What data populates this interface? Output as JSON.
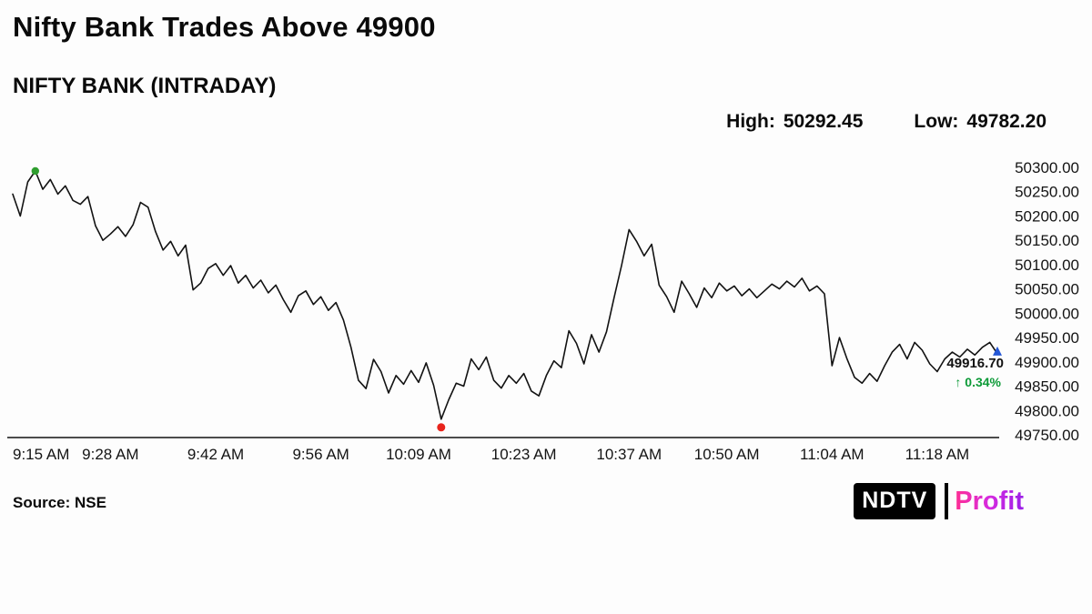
{
  "header": {
    "title": "Nifty Bank Trades Above 49900",
    "subtitle": "NIFTY BANK (INTRADAY)"
  },
  "stats": {
    "high_label": "High:",
    "high_value": "50292.45",
    "low_label": "Low:",
    "low_value": "49782.20"
  },
  "last_quote": {
    "price": "49916.70",
    "change": "↑ 0.34%",
    "change_color": "#0c9a37"
  },
  "footer": {
    "source": "Source: NSE",
    "logo": {
      "ndtv": "NDTV",
      "profit": "Profit",
      "profit_colors": [
        "#ff2f92",
        "#d62ae0",
        "#9b1fe8"
      ]
    }
  },
  "chart_data": {
    "type": "line",
    "title": "NIFTY BANK (INTRADAY)",
    "xlabel": "",
    "ylabel": "",
    "grid": false,
    "legend": false,
    "ylim": [
      49750,
      50300
    ],
    "y_ticks": [
      50300,
      50250,
      50200,
      50150,
      50100,
      50050,
      50000,
      49950,
      49900,
      49850,
      49800,
      49750
    ],
    "y_tick_format_decimals": 2,
    "x_ticks": [
      {
        "label": "9:15 AM",
        "minute": 0
      },
      {
        "label": "9:28 AM",
        "minute": 13
      },
      {
        "label": "9:42 AM",
        "minute": 27
      },
      {
        "label": "9:56 AM",
        "minute": 41
      },
      {
        "label": "10:09 AM",
        "minute": 54
      },
      {
        "label": "10:23 AM",
        "minute": 68
      },
      {
        "label": "10:37 AM",
        "minute": 82
      },
      {
        "label": "10:50 AM",
        "minute": 95
      },
      {
        "label": "11:04 AM",
        "minute": 109
      },
      {
        "label": "11:18 AM",
        "minute": 123
      }
    ],
    "interval_minutes": 1,
    "start_time": "9:15 AM",
    "high": 50292.45,
    "low": 49782.2,
    "last": 49916.7,
    "change_pct": 0.34,
    "line_color": "#121212",
    "high_dot_color": "#2f9e2f",
    "low_dot_color": "#e8241c",
    "end_marker_color": "#2457d6",
    "values": [
      50245,
      50200,
      50270,
      50292.45,
      50255,
      50275,
      50245,
      50262,
      50232,
      50224,
      50240,
      50180,
      50150,
      50163,
      50178,
      50158,
      50182,
      50228,
      50218,
      50168,
      50130,
      50148,
      50118,
      50140,
      50048,
      50062,
      50092,
      50102,
      50078,
      50098,
      50062,
      50078,
      50052,
      50068,
      50042,
      50058,
      50028,
      50002,
      50036,
      50046,
      50018,
      50034,
      50006,
      50022,
      49986,
      49930,
      49862,
      49845,
      49905,
      49880,
      49836,
      49872,
      49854,
      49882,
      49858,
      49898,
      49852,
      49782.2,
      49822,
      49856,
      49850,
      49906,
      49884,
      49910,
      49862,
      49846,
      49872,
      49856,
      49876,
      49840,
      49830,
      49872,
      49902,
      49888,
      49964,
      49938,
      49896,
      49956,
      49920,
      49962,
      50032,
      50098,
      50172,
      50148,
      50118,
      50142,
      50058,
      50034,
      50002,
      50066,
      50040,
      50012,
      50052,
      50032,
      50062,
      50046,
      50056,
      50036,
      50050,
      50032,
      50046,
      50060,
      50050,
      50066,
      50054,
      50072,
      50046,
      50056,
      50040,
      49892,
      49950,
      49906,
      49868,
      49856,
      49876,
      49860,
      49892,
      49920,
      49936,
      49906,
      49940,
      49924,
      49896,
      49880,
      49906,
      49920,
      49910,
      49926,
      49914,
      49930,
      49940,
      49916.7
    ]
  }
}
